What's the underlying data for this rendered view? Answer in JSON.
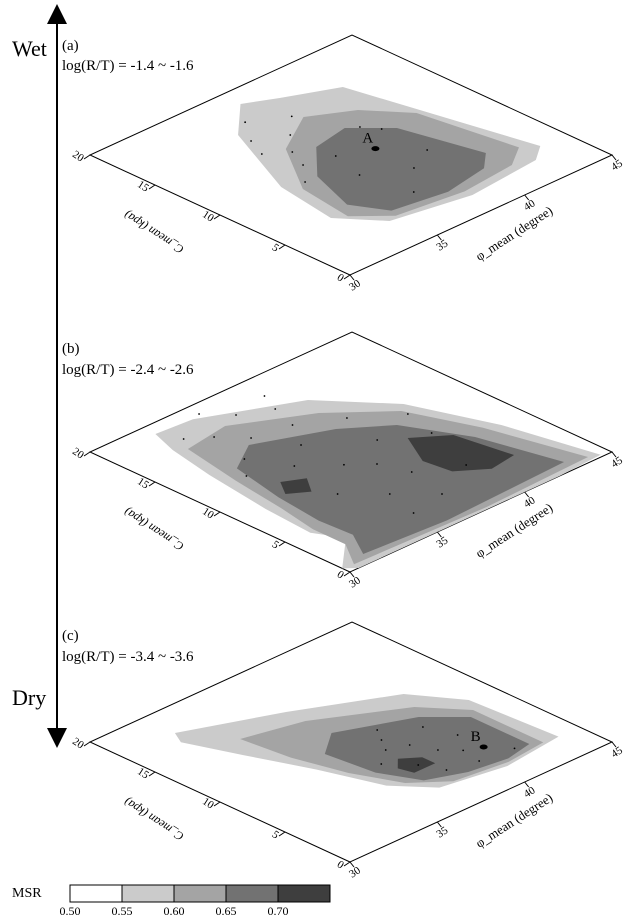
{
  "figure": {
    "wet_label": "Wet",
    "dry_label": "Dry",
    "legend": {
      "title": "MSR",
      "ticks": [
        "0.50",
        "0.55",
        "0.60",
        "0.65",
        "0.70"
      ],
      "colors": [
        "#ffffff",
        "#cbcbcb",
        "#a4a4a4",
        "#727272",
        "#3e3e3e"
      ]
    }
  },
  "chart_data": [
    {
      "type": "heatmap",
      "panel": "(a)",
      "subtitle": "log(R/T) = -1.4 ~ -1.6",
      "xlabel": "C_mean (kpa)",
      "ylabel": "φ_mean (degree)",
      "c_ticks": [
        "20",
        "15",
        "10",
        "5",
        "0"
      ],
      "phi_ticks": [
        "30",
        "35",
        "40",
        "45"
      ],
      "c_range": [
        0,
        20
      ],
      "phi_range": [
        30,
        45
      ],
      "annotations": [
        {
          "label": "A",
          "c": 9.6,
          "phi": 38.6
        }
      ],
      "bands": [
        {
          "msr": 0.55,
          "points": [
            [
              3.5,
              43.5
            ],
            [
              16.0,
              41.5
            ],
            [
              17.5,
              39.0
            ],
            [
              18.5,
              37.5
            ],
            [
              16.0,
              35.5
            ],
            [
              10.0,
              33.5
            ],
            [
              5.5,
              33.0
            ],
            [
              3.0,
              34.5
            ],
            [
              2.0,
              38.5
            ],
            [
              2.5,
              42.5
            ]
          ]
        },
        {
          "msr": 0.6,
          "points": [
            [
              4.2,
              42.8
            ],
            [
              11.0,
              42.0
            ],
            [
              13.5,
              40.5
            ],
            [
              15.0,
              38.5
            ],
            [
              13.0,
              36.0
            ],
            [
              9.0,
              34.0
            ],
            [
              5.0,
              33.6
            ],
            [
              3.2,
              35.0
            ],
            [
              2.6,
              38.5
            ],
            [
              3.0,
              41.5
            ]
          ]
        },
        {
          "msr": 0.65,
          "points": [
            [
              5.0,
              41.5
            ],
            [
              10.5,
              40.5
            ],
            [
              12.5,
              39.0
            ],
            [
              12.0,
              37.0
            ],
            [
              9.5,
              35.2
            ],
            [
              6.0,
              34.3
            ],
            [
              3.8,
              35.2
            ],
            [
              3.2,
              38.0
            ],
            [
              3.8,
              40.5
            ]
          ]
        }
      ],
      "points": [
        [
          9.6,
          38.6
        ],
        [
          14.0,
          37.0
        ],
        [
          12.5,
          36.0
        ],
        [
          11.0,
          35.5
        ],
        [
          15.5,
          38.2
        ],
        [
          10.5,
          37.0
        ],
        [
          8.0,
          36.5
        ],
        [
          12.0,
          39.5
        ],
        [
          6.5,
          38.5
        ],
        [
          9.5,
          34.5
        ],
        [
          7.5,
          40.0
        ],
        [
          13.5,
          35.0
        ],
        [
          16.8,
          36.5
        ],
        [
          15.0,
          35.5
        ],
        [
          11.0,
          40.0
        ],
        [
          4.5,
          37.0
        ]
      ]
    },
    {
      "type": "heatmap",
      "panel": "(b)",
      "subtitle": "log(R/T) = -2.4 ~ -2.6",
      "xlabel": "C_mean (kpa)",
      "ylabel": "φ_mean (degree)",
      "c_ticks": [
        "20",
        "15",
        "10",
        "5",
        "0"
      ],
      "phi_ticks": [
        "30",
        "35",
        "40",
        "45"
      ],
      "c_range": [
        0,
        20
      ],
      "phi_range": [
        30,
        45
      ],
      "annotations": [],
      "bands": [
        {
          "msr": 0.55,
          "points": [
            [
              0.2,
              44.5
            ],
            [
              6.5,
              43.5
            ],
            [
              12.0,
              42.0
            ],
            [
              16.0,
              39.5
            ],
            [
              18.8,
              35.0
            ],
            [
              19.0,
              33.0
            ],
            [
              17.0,
              32.5
            ],
            [
              13.5,
              32.0
            ],
            [
              8.5,
              31.5
            ],
            [
              4.8,
              31.3
            ],
            [
              3.0,
              32.0
            ],
            [
              0.6,
              30.0
            ],
            [
              0.0,
              30.5
            ],
            [
              0.0,
              42.0
            ]
          ]
        },
        {
          "msr": 0.6,
          "points": [
            [
              0.5,
              44.0
            ],
            [
              7.0,
              42.8
            ],
            [
              11.5,
              41.5
            ],
            [
              14.5,
              39.0
            ],
            [
              17.0,
              35.5
            ],
            [
              16.5,
              33.0
            ],
            [
              12.0,
              32.4
            ],
            [
              8.0,
              32.0
            ],
            [
              5.0,
              31.6
            ],
            [
              2.5,
              31.6
            ],
            [
              0.5,
              30.6
            ],
            [
              0.2,
              38.0
            ]
          ]
        },
        {
          "msr": 0.65,
          "points": [
            [
              1.0,
              43.0
            ],
            [
              6.5,
              42.0
            ],
            [
              10.5,
              40.5
            ],
            [
              12.5,
              38.5
            ],
            [
              14.5,
              35.0
            ],
            [
              13.0,
              33.2
            ],
            [
              9.0,
              32.6
            ],
            [
              5.5,
              32.3
            ],
            [
              3.0,
              32.4
            ],
            [
              1.0,
              31.5
            ],
            [
              0.6,
              36.0
            ]
          ]
        },
        {
          "msr": 0.7,
          "points": [
            [
              3.5,
              42.0
            ],
            [
              7.5,
              41.5
            ],
            [
              9.0,
              40.0
            ],
            [
              6.5,
              39.0
            ],
            [
              4.5,
              39.2
            ],
            [
              3.2,
              40.5
            ]
          ]
        },
        {
          "msr": 0.7,
          "points": [
            [
              9.5,
              34.6
            ],
            [
              10.2,
              33.6
            ],
            [
              9.0,
              33.0
            ],
            [
              8.2,
              33.9
            ]
          ]
        }
      ],
      "points": [
        [
          9.2,
          36.5
        ],
        [
          11.0,
          35.0
        ],
        [
          8.0,
          37.5
        ],
        [
          12.5,
          36.5
        ],
        [
          7.0,
          34.5
        ],
        [
          10.0,
          39.0
        ],
        [
          13.5,
          34.0
        ],
        [
          6.0,
          38.0
        ],
        [
          14.5,
          37.5
        ],
        [
          15.0,
          35.5
        ],
        [
          16.5,
          34.5
        ],
        [
          17.5,
          36.5
        ],
        [
          18.0,
          38.5
        ],
        [
          16.5,
          38.0
        ],
        [
          19.0,
          35.5
        ],
        [
          17.5,
          33.5
        ],
        [
          12.0,
          33.0
        ],
        [
          5.0,
          36.0
        ],
        [
          3.0,
          37.5
        ],
        [
          8.5,
          41.0
        ],
        [
          11.0,
          41.5
        ],
        [
          4.5,
          40.0
        ],
        [
          2.5,
          35.5
        ],
        [
          13.0,
          39.5
        ]
      ]
    },
    {
      "type": "heatmap",
      "panel": "(c)",
      "subtitle": "log(R/T) = -3.4 ~ -3.6",
      "xlabel": "C_mean (kpa)",
      "ylabel": "φ_mean (degree)",
      "c_ticks": [
        "20",
        "15",
        "10",
        "5",
        "0"
      ],
      "phi_ticks": [
        "30",
        "35",
        "40",
        "45"
      ],
      "c_range": [
        0,
        20
      ],
      "phi_range": [
        30,
        45
      ],
      "annotations": [
        {
          "label": "B",
          "c": 4.5,
          "phi": 41.0
        }
      ],
      "bands": [
        {
          "msr": 0.55,
          "points": [
            [
              2.5,
              43.8
            ],
            [
              9.0,
              43.5
            ],
            [
              12.0,
              42.0
            ],
            [
              15.0,
              37.5
            ],
            [
              17.5,
              33.0
            ],
            [
              16.5,
              32.6
            ],
            [
              13.0,
              33.6
            ],
            [
              9.0,
              34.8
            ],
            [
              5.0,
              35.8
            ],
            [
              2.8,
              37.2
            ],
            [
              2.0,
              40.5
            ]
          ]
        },
        {
          "msr": 0.6,
          "points": [
            [
              2.6,
              43.0
            ],
            [
              8.0,
              43.0
            ],
            [
              10.5,
              41.5
            ],
            [
              13.5,
              37.5
            ],
            [
              14.5,
              34.5
            ],
            [
              11.0,
              34.8
            ],
            [
              7.5,
              35.5
            ],
            [
              4.5,
              36.5
            ],
            [
              2.8,
              38.0
            ],
            [
              2.3,
              40.8
            ]
          ]
        },
        {
          "msr": 0.65,
          "points": [
            [
              3.0,
              42.5
            ],
            [
              7.5,
              42.5
            ],
            [
              9.5,
              41.0
            ],
            [
              11.5,
              37.5
            ],
            [
              10.0,
              36.0
            ],
            [
              6.5,
              36.3
            ],
            [
              4.0,
              37.2
            ],
            [
              3.0,
              39.0
            ],
            [
              2.6,
              41.0
            ]
          ]
        },
        {
          "msr": 0.7,
          "points": [
            [
              5.0,
              38.6
            ],
            [
              6.0,
              38.6
            ],
            [
              6.8,
              37.8
            ],
            [
              6.0,
              37.2
            ],
            [
              5.0,
              37.4
            ]
          ]
        }
      ],
      "points": [
        [
          4.5,
          41.0
        ],
        [
          6.0,
          39.5
        ],
        [
          7.5,
          39.0
        ],
        [
          3.5,
          40.0
        ],
        [
          8.5,
          40.5
        ],
        [
          5.5,
          38.0
        ],
        [
          9.0,
          38.5
        ],
        [
          7.0,
          37.0
        ],
        [
          4.0,
          38.5
        ],
        [
          10.0,
          39.0
        ],
        [
          6.5,
          41.0
        ],
        [
          3.2,
          41.8
        ],
        [
          5.0,
          40.2
        ],
        [
          8.0,
          38.0
        ]
      ]
    }
  ]
}
